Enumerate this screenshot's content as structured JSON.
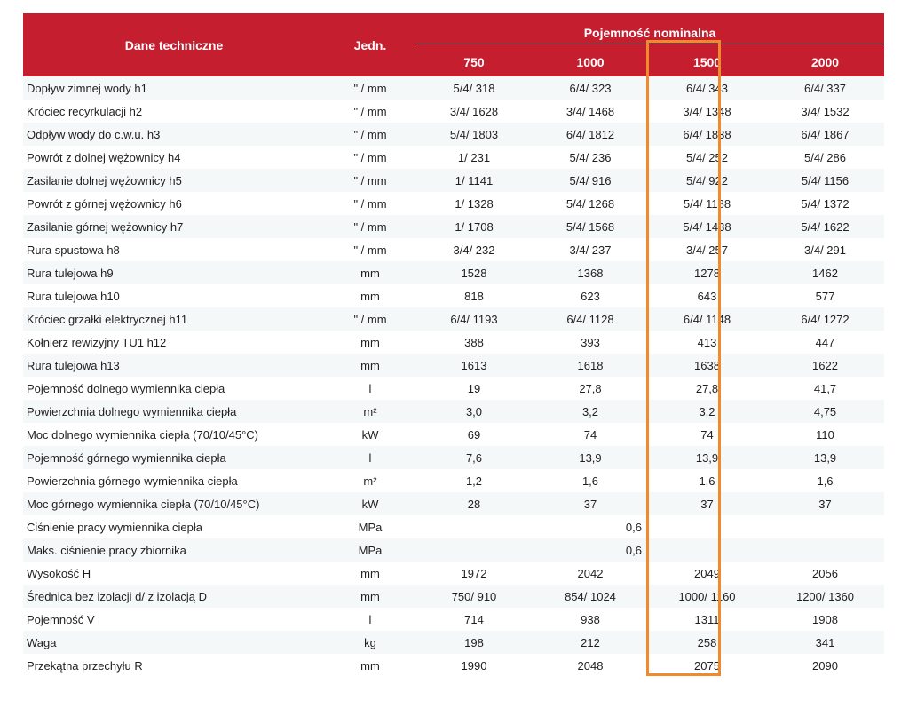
{
  "table": {
    "header": {
      "name_col": "Dane techniczne",
      "unit_col": "Jedn.",
      "group": "Pojemność nominalna",
      "capacities": [
        "750",
        "1000",
        "1500",
        "2000"
      ]
    },
    "rows": [
      {
        "name": "Dopływ zimnej wody h1",
        "unit": "\" / mm",
        "values": [
          "5/4/ 318",
          "6/4/ 323",
          "6/4/ 343",
          "6/4/ 337"
        ]
      },
      {
        "name": "Króciec recyrkulacji h2",
        "unit": "\" / mm",
        "values": [
          "3/4/ 1628",
          "3/4/ 1468",
          "3/4/ 1348",
          "3/4/ 1532"
        ]
      },
      {
        "name": "Odpływ wody do c.w.u. h3",
        "unit": "\" / mm",
        "values": [
          "5/4/ 1803",
          "6/4/ 1812",
          "6/4/ 1838",
          "6/4/ 1867"
        ]
      },
      {
        "name": "Powrót z dolnej wężownicy h4",
        "unit": "\" / mm",
        "values": [
          "1/ 231",
          "5/4/ 236",
          "5/4/ 252",
          "5/4/ 286"
        ]
      },
      {
        "name": "Zasilanie dolnej wężownicy h5",
        "unit": "\" / mm",
        "values": [
          "1/ 1141",
          "5/4/ 916",
          "5/4/ 922",
          "5/4/ 1156"
        ]
      },
      {
        "name": "Powrót z górnej wężownicy h6",
        "unit": "\" / mm",
        "values": [
          "1/ 1328",
          "5/4/ 1268",
          "5/4/ 1188",
          "5/4/ 1372"
        ]
      },
      {
        "name": "Zasilanie górnej wężownicy h7",
        "unit": "\" / mm",
        "values": [
          "1/ 1708",
          "5/4/ 1568",
          "5/4/ 1438",
          "5/4/ 1622"
        ]
      },
      {
        "name": "Rura spustowa h8",
        "unit": "\" / mm",
        "values": [
          "3/4/ 232",
          "3/4/ 237",
          "3/4/ 257",
          "3/4/ 291"
        ]
      },
      {
        "name": "Rura tulejowa h9",
        "unit": "mm",
        "values": [
          "1528",
          "1368",
          "1278",
          "1462"
        ]
      },
      {
        "name": "Rura tulejowa h10",
        "unit": "mm",
        "values": [
          "818",
          "623",
          "643",
          "577"
        ]
      },
      {
        "name": "Króciec grzałki elektrycznej h11",
        "unit": "\" / mm",
        "values": [
          "6/4/ 1193",
          "6/4/ 1128",
          "6/4/ 1148",
          "6/4/ 1272"
        ]
      },
      {
        "name": "Kołnierz rewizyjny TU1 h12",
        "unit": "mm",
        "values": [
          "388",
          "393",
          "413",
          "447"
        ]
      },
      {
        "name": "Rura tulejowa h13",
        "unit": "mm",
        "values": [
          "1613",
          "1618",
          "1638",
          "1622"
        ]
      },
      {
        "name": "Pojemność dolnego wymiennika ciepła",
        "unit": "l",
        "values": [
          "19",
          "27,8",
          "27,8",
          "41,7"
        ]
      },
      {
        "name": "Powierzchnia dolnego wymiennika ciepła",
        "unit": "m²",
        "values": [
          "3,0",
          "3,2",
          "3,2",
          "4,75"
        ]
      },
      {
        "name": "Moc dolnego wymiennika ciepła (70/10/45°C)",
        "unit": "kW",
        "values": [
          "69",
          "74",
          "74",
          "110"
        ]
      },
      {
        "name": "Pojemność górnego wymiennika ciepła",
        "unit": "l",
        "values": [
          "7,6",
          "13,9",
          "13,9",
          "13,9"
        ]
      },
      {
        "name": "Powierzchnia górnego wymiennika ciepła",
        "unit": "m²",
        "values": [
          "1,2",
          "1,6",
          "1,6",
          "1,6"
        ]
      },
      {
        "name": "Moc górnego wymiennika ciepła (70/10/45°C)",
        "unit": "kW",
        "values": [
          "28",
          "37",
          "37",
          "37"
        ]
      },
      {
        "name": "Ciśnienie pracy wymiennika ciepła",
        "unit": "MPa",
        "merged": "0,6"
      },
      {
        "name": "Maks. ciśnienie pracy zbiornika",
        "unit": "MPa",
        "merged": "0,6"
      },
      {
        "name": "Wysokość H",
        "unit": "mm",
        "values": [
          "1972",
          "2042",
          "2049",
          "2056"
        ]
      },
      {
        "name": "Średnica bez izolacji d/ z izolacją D",
        "unit": "mm",
        "values": [
          "750/ 910",
          "854/ 1024",
          "1000/ 1160",
          "1200/ 1360"
        ]
      },
      {
        "name": "Pojemność V",
        "unit": "l",
        "values": [
          "714",
          "938",
          "1311",
          "1908"
        ]
      },
      {
        "name": "Waga",
        "unit": "kg",
        "values": [
          "198",
          "212",
          "258",
          "341"
        ]
      },
      {
        "name": "Przekątna przechyłu R",
        "unit": "mm",
        "values": [
          "1990",
          "2048",
          "2075",
          "2090"
        ]
      }
    ]
  },
  "colors": {
    "header_bg": "#c41e2f",
    "header_text": "#ffffff",
    "row_stripe": "#f5f8f8",
    "highlight_border": "#f08a2c"
  },
  "highlight": {
    "column": "1500"
  }
}
